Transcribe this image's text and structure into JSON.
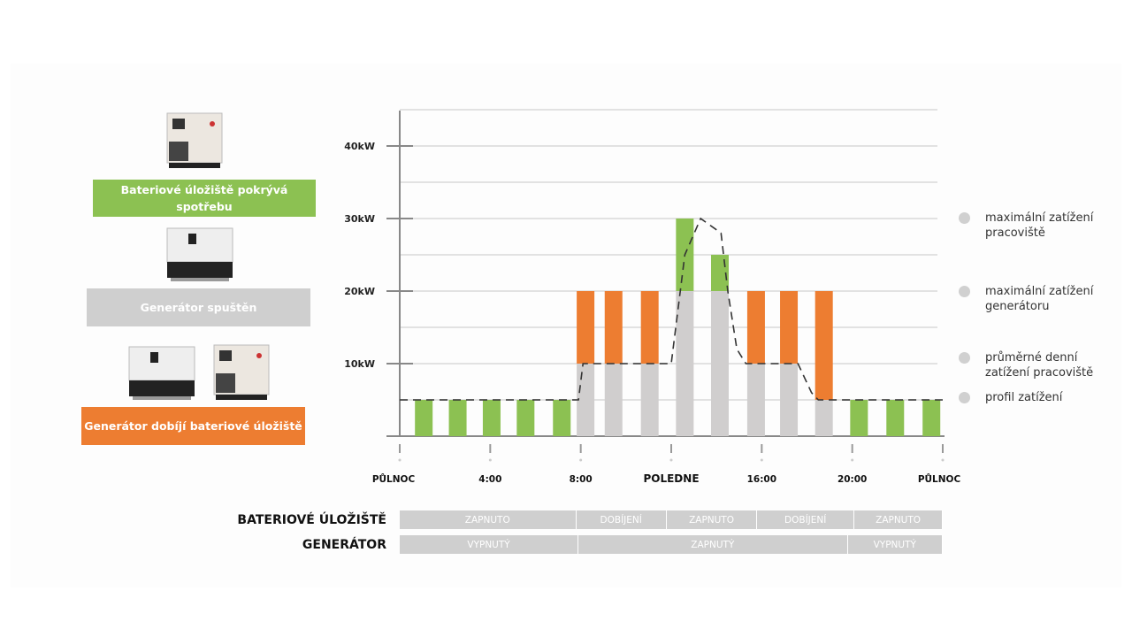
{
  "left_panel": {
    "battery_covers": "Bateriové úložiště pokrývá spotřebu",
    "generator_running": "Generátor spuštěn",
    "generator_charges": "Generátor dobíjí bateriové úložiště"
  },
  "legend": [
    "maximální zatížení pracoviště",
    "maximální zatížení generátoru",
    "průměrné denní zatížení pracoviště",
    "profil zatížení"
  ],
  "colors": {
    "green": "#8cc152",
    "orange": "#ed7d31",
    "gray": "#d0cece"
  },
  "chart_data": {
    "type": "bar",
    "stacked": true,
    "ylabel": "kW",
    "ylim": [
      0,
      45
    ],
    "yticks": [
      {
        "value": 10,
        "label": "10kW"
      },
      {
        "value": 20,
        "label": "20kW"
      },
      {
        "value": 30,
        "label": "30kW"
      },
      {
        "value": 40,
        "label": "40kW"
      }
    ],
    "xlim": [
      0,
      24
    ],
    "xticks": [
      {
        "hour": 0,
        "label": "PŮLNOC"
      },
      {
        "hour": 4,
        "label": "4:00"
      },
      {
        "hour": 8,
        "label": "8:00"
      },
      {
        "hour": 12,
        "label": "POLEDNE"
      },
      {
        "hour": 16,
        "label": "16:00"
      },
      {
        "hour": 20,
        "label": "20:00"
      },
      {
        "hour": 24,
        "label": "PŮLNOC"
      }
    ],
    "bars": [
      {
        "hour": 0.75,
        "gray": 0,
        "green": 5,
        "orange": 0
      },
      {
        "hour": 2.25,
        "gray": 0,
        "green": 5,
        "orange": 0
      },
      {
        "hour": 3.75,
        "gray": 0,
        "green": 5,
        "orange": 0
      },
      {
        "hour": 5.25,
        "gray": 0,
        "green": 5,
        "orange": 0
      },
      {
        "hour": 6.85,
        "gray": 0,
        "green": 5,
        "orange": 0
      },
      {
        "hour": 7.9,
        "gray": 10,
        "green": 0,
        "orange": 10
      },
      {
        "hour": 9.45,
        "gray": 10,
        "green": 0,
        "orange": 10
      },
      {
        "hour": 11.05,
        "gray": 10,
        "green": 0,
        "orange": 10
      },
      {
        "hour": 12.6,
        "gray": 20,
        "green": 10,
        "orange": 0
      },
      {
        "hour": 14.15,
        "gray": 20,
        "green": 5,
        "orange": 0
      },
      {
        "hour": 15.75,
        "gray": 10,
        "green": 0,
        "orange": 10
      },
      {
        "hour": 17.2,
        "gray": 10,
        "green": 0,
        "orange": 10
      },
      {
        "hour": 18.75,
        "gray": 5,
        "green": 0,
        "orange": 15
      },
      {
        "hour": 20.3,
        "gray": 0,
        "green": 5,
        "orange": 0
      },
      {
        "hour": 21.9,
        "gray": 0,
        "green": 5,
        "orange": 0
      },
      {
        "hour": 23.5,
        "gray": 0,
        "green": 5,
        "orange": 0
      }
    ],
    "load_profile": [
      [
        0,
        5
      ],
      [
        7.9,
        5
      ],
      [
        8.1,
        10
      ],
      [
        12.0,
        10
      ],
      [
        12.6,
        25
      ],
      [
        13.3,
        30
      ],
      [
        14.2,
        28
      ],
      [
        14.5,
        20
      ],
      [
        14.9,
        12
      ],
      [
        15.3,
        10
      ],
      [
        17.6,
        10
      ],
      [
        18.2,
        6
      ],
      [
        18.5,
        5
      ],
      [
        24,
        5
      ]
    ]
  },
  "schedule": {
    "battery": {
      "label": "BATERIOVÉ ÚLOŽIŠTĚ",
      "segments": [
        {
          "text": "ZAPNUTO",
          "from": 0,
          "to": 7.8
        },
        {
          "text": "DOBÍJENÍ",
          "from": 7.8,
          "to": 11.8
        },
        {
          "text": "ZAPNUTO",
          "from": 11.8,
          "to": 15.8
        },
        {
          "text": "DOBÍJENÍ",
          "from": 15.8,
          "to": 20.1
        },
        {
          "text": "ZAPNUTO",
          "from": 20.1,
          "to": 24
        }
      ]
    },
    "generator": {
      "label": "GENERÁTOR",
      "segments": [
        {
          "text": "VYPNUTÝ",
          "from": 0,
          "to": 7.9
        },
        {
          "text": "ZAPNUTÝ",
          "from": 7.9,
          "to": 19.8
        },
        {
          "text": "VYPNUTÝ",
          "from": 19.8,
          "to": 24
        }
      ]
    }
  }
}
